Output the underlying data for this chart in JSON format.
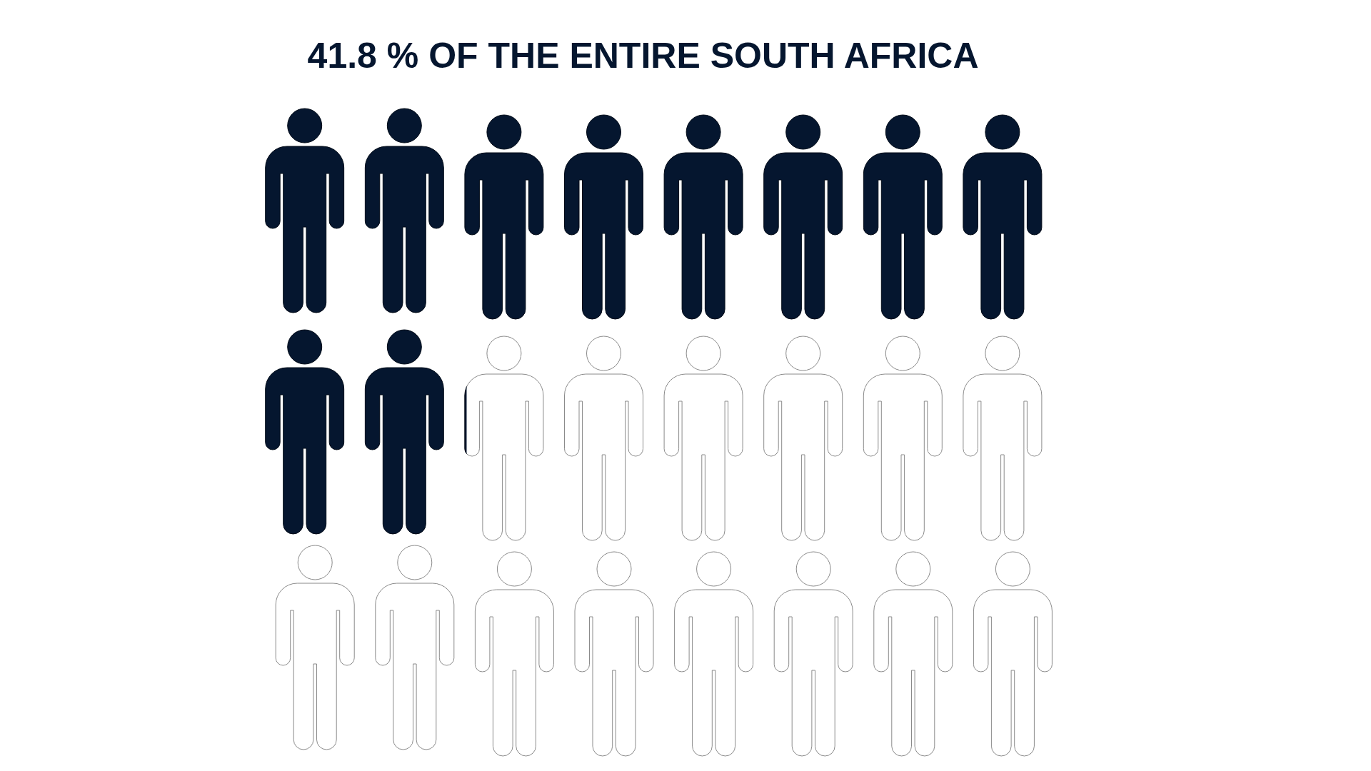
{
  "chart_data": {
    "type": "other",
    "title": "OF THE ENTIRE SOUTH AFRICA",
    "values": [
      41.8
    ],
    "value_labels": [
      "41.8 %"
    ],
    "color": "#05162f"
  }
}
